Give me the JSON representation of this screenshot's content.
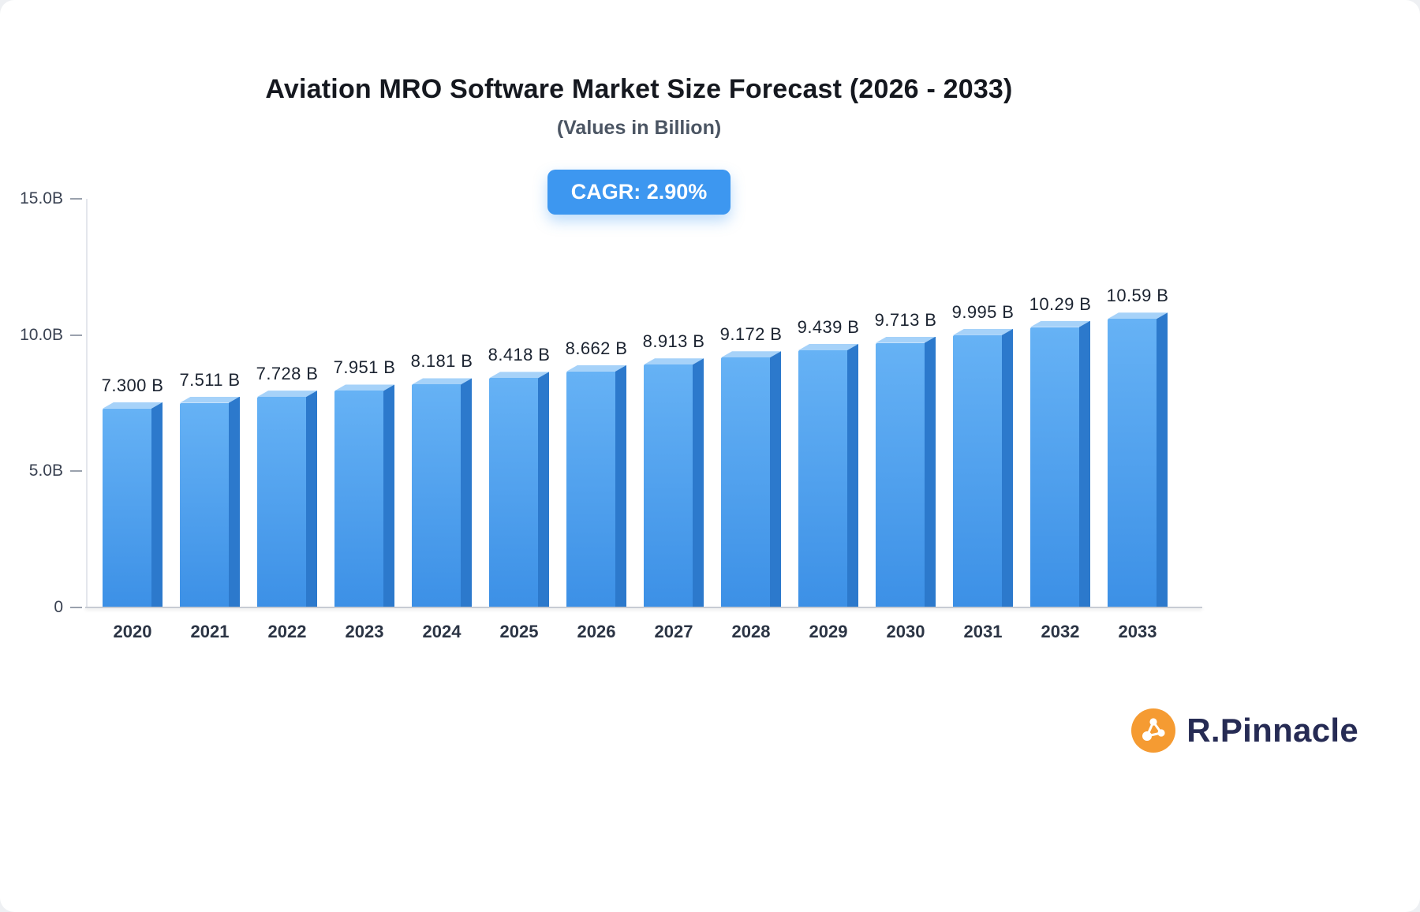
{
  "header": {
    "title": "Aviation MRO Software Market Size Forecast (2026 - 2033)",
    "subtitle": "(Values in Billion)",
    "cagr_badge": "CAGR: 2.90%"
  },
  "chart_data": {
    "type": "bar",
    "title": "Aviation MRO Software Market Size Forecast (2026 - 2033)",
    "subtitle": "(Values in Billion)",
    "cagr_percent": 2.9,
    "categories": [
      "2020",
      "2021",
      "2022",
      "2023",
      "2024",
      "2025",
      "2026",
      "2027",
      "2028",
      "2029",
      "2030",
      "2031",
      "2032",
      "2033"
    ],
    "values": [
      7.3,
      7.511,
      7.728,
      7.951,
      8.181,
      8.418,
      8.662,
      8.913,
      9.172,
      9.439,
      9.713,
      9.995,
      10.29,
      10.59
    ],
    "value_labels": [
      "7.300 B",
      "7.511 B",
      "7.728 B",
      "7.951 B",
      "8.181 B",
      "8.418 B",
      "8.662 B",
      "8.913 B",
      "9.172 B",
      "9.439 B",
      "9.713 B",
      "9.995 B",
      "10.29 B",
      "10.59 B"
    ],
    "ylabel": "",
    "xlabel": "",
    "ylim": [
      0,
      15
    ],
    "yticks": [
      {
        "value": 0,
        "label": "0"
      },
      {
        "value": 5,
        "label": "5.0B"
      },
      {
        "value": 10,
        "label": "10.0B"
      },
      {
        "value": 15,
        "label": "15.0B"
      }
    ],
    "grid": false,
    "legend": false
  },
  "brand": {
    "name": "R.Pinnacle"
  },
  "colors": {
    "accent_blue": "#3D97F0",
    "bar_front_top": "#66B2F5",
    "bar_front_bottom": "#3C90E6",
    "bar_side": "#2C79CC",
    "bar_top": "#A6D2F9",
    "brand_orange": "#F59B32",
    "brand_navy": "#262B54"
  }
}
